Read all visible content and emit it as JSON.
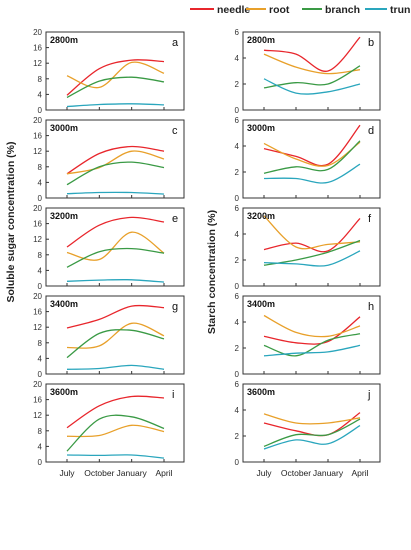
{
  "legend": [
    {
      "name": "needle",
      "color": "#e8262c"
    },
    {
      "name": "root",
      "color": "#e8a02a"
    },
    {
      "name": "branch",
      "color": "#3a9a45"
    },
    {
      "name": "trunk",
      "color": "#2aa6bd"
    }
  ],
  "left_ylabel": "Soluble sugar concentration (%)",
  "right_ylabel": "Starch concentration (%)",
  "x_tick_labels": [
    "July",
    "October",
    "January",
    "April"
  ],
  "chart_data": [
    {
      "type": "line",
      "panel": "a",
      "elevation": "2800m",
      "categories": [
        "July",
        "October",
        "January",
        "April"
      ],
      "ylim": [
        0,
        20
      ],
      "yticks": [
        0,
        4,
        8,
        12,
        16,
        20
      ],
      "series": [
        {
          "name": "needle",
          "values": [
            3.8,
            10.6,
            12.8,
            12.4
          ]
        },
        {
          "name": "root",
          "values": [
            8.8,
            5.8,
            12.2,
            9.4
          ]
        },
        {
          "name": "branch",
          "values": [
            3.2,
            7.4,
            8.4,
            7.2
          ]
        },
        {
          "name": "trunk",
          "values": [
            0.9,
            1.4,
            1.6,
            1.3
          ]
        }
      ]
    },
    {
      "type": "line",
      "panel": "b",
      "elevation": "2800m",
      "categories": [
        "July",
        "October",
        "January",
        "April"
      ],
      "ylim": [
        0,
        6
      ],
      "yticks": [
        0,
        2,
        4,
        6
      ],
      "series": [
        {
          "name": "needle",
          "values": [
            4.6,
            4.3,
            3.0,
            5.6
          ]
        },
        {
          "name": "root",
          "values": [
            4.3,
            3.3,
            2.8,
            3.1
          ]
        },
        {
          "name": "branch",
          "values": [
            1.7,
            2.1,
            2.0,
            3.4
          ]
        },
        {
          "name": "trunk",
          "values": [
            2.4,
            1.3,
            1.4,
            2.0
          ]
        }
      ]
    },
    {
      "type": "line",
      "panel": "c",
      "elevation": "3000m",
      "categories": [
        "July",
        "October",
        "January",
        "April"
      ],
      "ylim": [
        0,
        20
      ],
      "yticks": [
        0,
        4,
        8,
        12,
        16,
        20
      ],
      "series": [
        {
          "name": "needle",
          "values": [
            6.2,
            11.4,
            13.2,
            12.0
          ]
        },
        {
          "name": "root",
          "values": [
            6.2,
            7.8,
            12.0,
            10.0
          ]
        },
        {
          "name": "branch",
          "values": [
            3.4,
            8.0,
            9.2,
            7.8
          ]
        },
        {
          "name": "trunk",
          "values": [
            1.1,
            1.4,
            1.4,
            1.0
          ]
        }
      ]
    },
    {
      "type": "line",
      "panel": "d",
      "elevation": "3000m",
      "categories": [
        "July",
        "October",
        "January",
        "April"
      ],
      "ylim": [
        0,
        6
      ],
      "yticks": [
        0,
        2,
        4,
        6
      ],
      "series": [
        {
          "name": "needle",
          "values": [
            3.8,
            3.2,
            2.6,
            5.6
          ]
        },
        {
          "name": "root",
          "values": [
            4.2,
            3.0,
            2.5,
            4.3
          ]
        },
        {
          "name": "branch",
          "values": [
            1.9,
            2.4,
            2.2,
            4.4
          ]
        },
        {
          "name": "trunk",
          "values": [
            1.5,
            1.5,
            1.2,
            2.6
          ]
        }
      ]
    },
    {
      "type": "line",
      "panel": "e",
      "elevation": "3200m",
      "categories": [
        "July",
        "October",
        "January",
        "April"
      ],
      "ylim": [
        0,
        20
      ],
      "yticks": [
        0,
        4,
        8,
        12,
        16,
        20
      ],
      "series": [
        {
          "name": "needle",
          "values": [
            10.0,
            15.6,
            17.6,
            16.4
          ]
        },
        {
          "name": "root",
          "values": [
            8.6,
            6.8,
            13.8,
            8.4
          ]
        },
        {
          "name": "branch",
          "values": [
            4.8,
            8.8,
            9.6,
            8.4
          ]
        },
        {
          "name": "trunk",
          "values": [
            1.2,
            1.5,
            1.6,
            1.0
          ]
        }
      ]
    },
    {
      "type": "line",
      "panel": "f",
      "elevation": "3200m",
      "categories": [
        "July",
        "October",
        "January",
        "April"
      ],
      "ylim": [
        0,
        6
      ],
      "yticks": [
        0,
        2,
        4,
        6
      ],
      "series": [
        {
          "name": "needle",
          "values": [
            2.8,
            3.3,
            2.7,
            5.2
          ]
        },
        {
          "name": "root",
          "values": [
            5.4,
            3.0,
            3.2,
            3.4
          ]
        },
        {
          "name": "branch",
          "values": [
            1.6,
            2.0,
            2.6,
            3.5
          ]
        },
        {
          "name": "trunk",
          "values": [
            1.8,
            1.7,
            1.6,
            2.7
          ]
        }
      ]
    },
    {
      "type": "line",
      "panel": "g",
      "elevation": "3400m",
      "categories": [
        "July",
        "October",
        "January",
        "April"
      ],
      "ylim": [
        0,
        20
      ],
      "yticks": [
        0,
        4,
        8,
        12,
        16,
        20
      ],
      "series": [
        {
          "name": "needle",
          "values": [
            11.8,
            14.0,
            17.4,
            17.0
          ]
        },
        {
          "name": "root",
          "values": [
            6.8,
            7.2,
            13.0,
            9.8
          ]
        },
        {
          "name": "branch",
          "values": [
            4.2,
            10.4,
            11.2,
            9.0
          ]
        },
        {
          "name": "trunk",
          "values": [
            1.2,
            1.4,
            2.2,
            1.2
          ]
        }
      ]
    },
    {
      "type": "line",
      "panel": "h",
      "elevation": "3400m",
      "categories": [
        "July",
        "October",
        "January",
        "April"
      ],
      "ylim": [
        0,
        6
      ],
      "yticks": [
        0,
        2,
        4,
        6
      ],
      "series": [
        {
          "name": "needle",
          "values": [
            2.9,
            2.4,
            2.5,
            4.4
          ]
        },
        {
          "name": "root",
          "values": [
            4.5,
            3.2,
            2.9,
            3.7
          ]
        },
        {
          "name": "branch",
          "values": [
            2.2,
            1.4,
            2.6,
            3.1
          ]
        },
        {
          "name": "trunk",
          "values": [
            1.4,
            1.6,
            1.7,
            2.2
          ]
        }
      ]
    },
    {
      "type": "line",
      "panel": "i",
      "elevation": "3600m",
      "categories": [
        "July",
        "October",
        "January",
        "April"
      ],
      "ylim": [
        0,
        20
      ],
      "yticks": [
        0,
        4,
        8,
        12,
        16,
        20
      ],
      "series": [
        {
          "name": "needle",
          "values": [
            8.8,
            14.4,
            16.8,
            16.4
          ]
        },
        {
          "name": "root",
          "values": [
            6.6,
            6.8,
            9.4,
            7.8
          ]
        },
        {
          "name": "branch",
          "values": [
            2.8,
            11.0,
            11.6,
            8.6
          ]
        },
        {
          "name": "trunk",
          "values": [
            1.8,
            1.7,
            1.8,
            1.0
          ]
        }
      ]
    },
    {
      "type": "line",
      "panel": "j",
      "elevation": "3600m",
      "categories": [
        "July",
        "October",
        "January",
        "April"
      ],
      "ylim": [
        0,
        6
      ],
      "yticks": [
        0,
        2,
        4,
        6
      ],
      "series": [
        {
          "name": "needle",
          "values": [
            3.0,
            2.4,
            2.1,
            3.8
          ]
        },
        {
          "name": "root",
          "values": [
            3.7,
            3.0,
            3.0,
            3.4
          ]
        },
        {
          "name": "branch",
          "values": [
            1.2,
            2.1,
            2.1,
            3.3
          ]
        },
        {
          "name": "trunk",
          "values": [
            1.0,
            1.7,
            1.4,
            2.8
          ]
        }
      ]
    }
  ]
}
